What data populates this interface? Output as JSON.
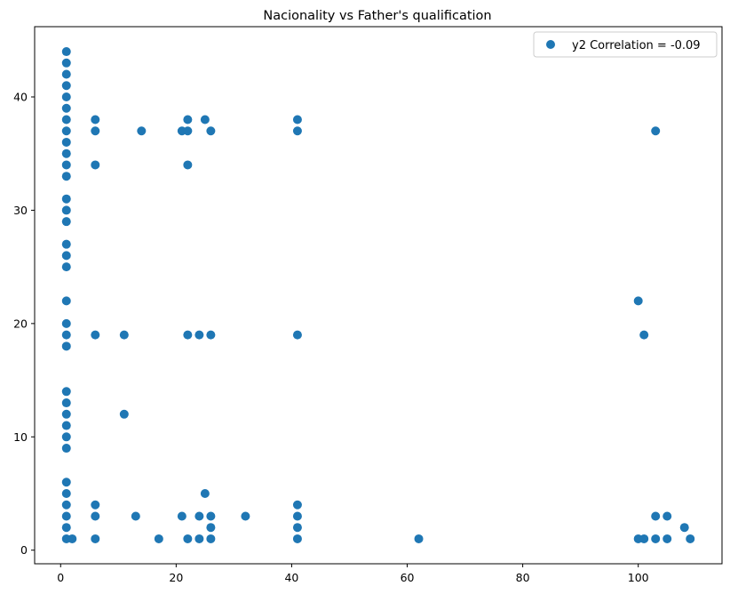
{
  "chart_data": {
    "type": "scatter",
    "title": "Nacionality vs Father's qualification",
    "xlabel": "",
    "ylabel": "",
    "xlim": [
      -4.5,
      114.5
    ],
    "ylim": [
      -1.2,
      46.2
    ],
    "xticks": [
      0,
      20,
      40,
      60,
      80,
      100
    ],
    "yticks": [
      0,
      10,
      20,
      30,
      40
    ],
    "grid": false,
    "legend_position": "top-right",
    "marker_color": "#1f77b4",
    "series": [
      {
        "name": "y2 Correlation = -0.09",
        "points": [
          [
            1,
            1
          ],
          [
            1,
            2
          ],
          [
            1,
            3
          ],
          [
            1,
            4
          ],
          [
            1,
            5
          ],
          [
            1,
            6
          ],
          [
            1,
            9
          ],
          [
            1,
            10
          ],
          [
            1,
            11
          ],
          [
            1,
            12
          ],
          [
            1,
            13
          ],
          [
            1,
            14
          ],
          [
            1,
            18
          ],
          [
            1,
            19
          ],
          [
            1,
            20
          ],
          [
            1,
            22
          ],
          [
            1,
            25
          ],
          [
            1,
            26
          ],
          [
            1,
            27
          ],
          [
            1,
            29
          ],
          [
            1,
            30
          ],
          [
            1,
            31
          ],
          [
            1,
            33
          ],
          [
            1,
            34
          ],
          [
            1,
            35
          ],
          [
            1,
            36
          ],
          [
            1,
            37
          ],
          [
            1,
            38
          ],
          [
            1,
            39
          ],
          [
            1,
            40
          ],
          [
            1,
            41
          ],
          [
            1,
            42
          ],
          [
            1,
            43
          ],
          [
            1,
            44
          ],
          [
            2,
            1
          ],
          [
            6,
            1
          ],
          [
            6,
            3
          ],
          [
            6,
            4
          ],
          [
            6,
            19
          ],
          [
            6,
            34
          ],
          [
            6,
            37
          ],
          [
            6,
            38
          ],
          [
            11,
            12
          ],
          [
            11,
            19
          ],
          [
            13,
            3
          ],
          [
            14,
            37
          ],
          [
            17,
            1
          ],
          [
            21,
            3
          ],
          [
            21,
            37
          ],
          [
            22,
            1
          ],
          [
            22,
            19
          ],
          [
            22,
            34
          ],
          [
            22,
            37
          ],
          [
            22,
            38
          ],
          [
            24,
            1
          ],
          [
            24,
            3
          ],
          [
            24,
            19
          ],
          [
            25,
            5
          ],
          [
            25,
            38
          ],
          [
            26,
            1
          ],
          [
            26,
            2
          ],
          [
            26,
            3
          ],
          [
            26,
            19
          ],
          [
            26,
            37
          ],
          [
            32,
            3
          ],
          [
            41,
            1
          ],
          [
            41,
            2
          ],
          [
            41,
            3
          ],
          [
            41,
            4
          ],
          [
            41,
            19
          ],
          [
            41,
            37
          ],
          [
            41,
            38
          ],
          [
            62,
            1
          ],
          [
            100,
            1
          ],
          [
            100,
            22
          ],
          [
            101,
            1
          ],
          [
            101,
            19
          ],
          [
            103,
            1
          ],
          [
            103,
            3
          ],
          [
            103,
            37
          ],
          [
            105,
            1
          ],
          [
            105,
            3
          ],
          [
            108,
            2
          ],
          [
            109,
            1
          ]
        ]
      }
    ]
  }
}
